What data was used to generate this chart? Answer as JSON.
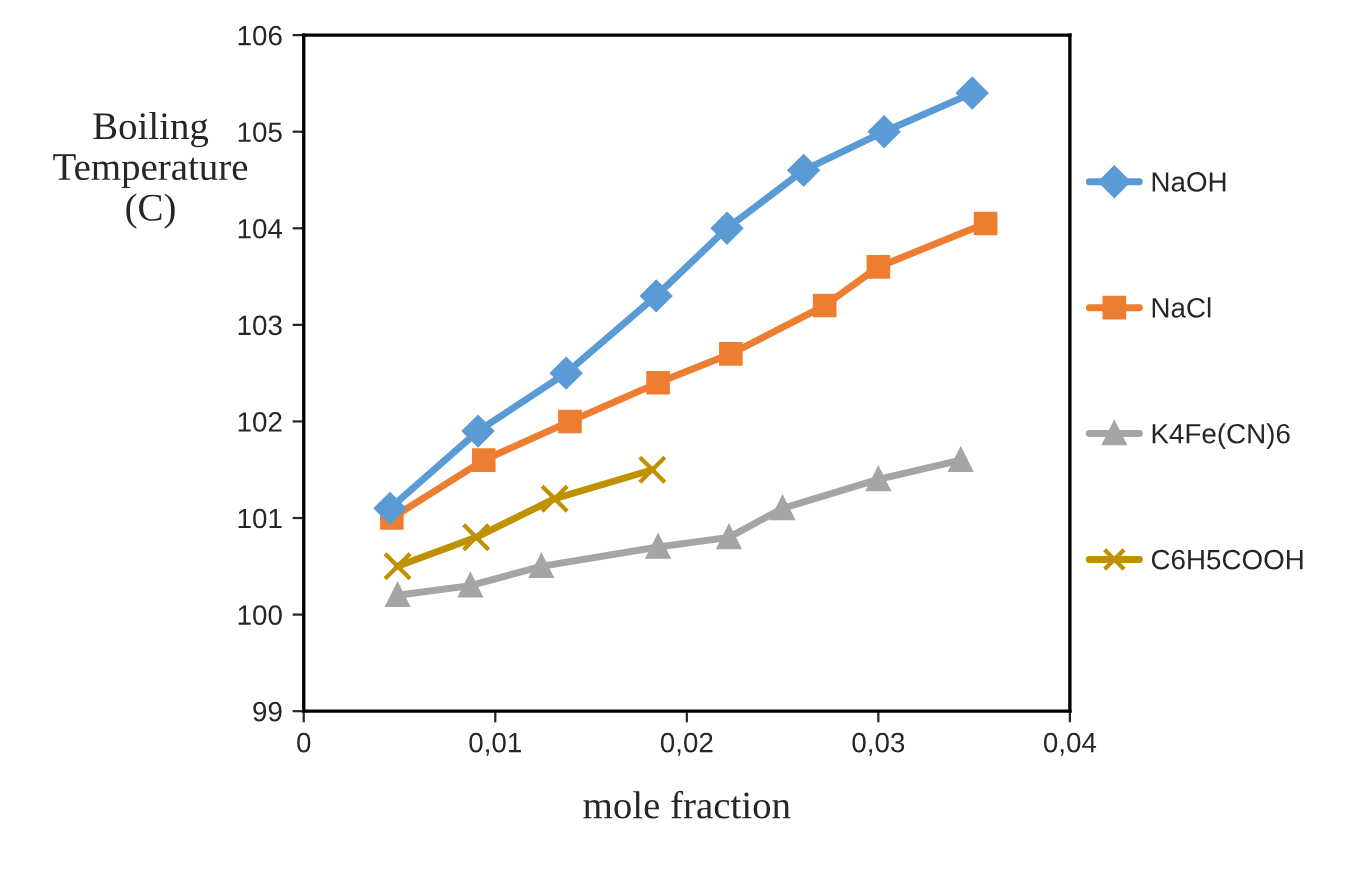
{
  "chart_data": {
    "type": "line",
    "xlabel": "mole fraction",
    "ylabel": "Boiling\nTemperature\n(C)",
    "xlim": [
      0,
      0.04
    ],
    "ylim": [
      99,
      106
    ],
    "xticks": [
      0,
      {
        "value": 0.01,
        "label": "0,01"
      },
      {
        "value": 0.02,
        "label": "0,02"
      },
      {
        "value": 0.03,
        "label": "0,03"
      },
      {
        "value": 0.04,
        "label": "0,04"
      }
    ],
    "yticks": [
      99,
      100,
      101,
      102,
      103,
      104,
      105,
      106
    ],
    "grid": false,
    "legend": "right",
    "series": [
      {
        "name": "NaOH",
        "color": "#5b9bd5",
        "marker": "diamond",
        "x": [
          0.0045,
          0.0091,
          0.0137,
          0.0184,
          0.0221,
          0.0261,
          0.0303,
          0.0349
        ],
        "values": [
          101.1,
          101.9,
          102.5,
          103.3,
          104.0,
          104.6,
          105.0,
          105.4
        ]
      },
      {
        "name": "NaCl",
        "color": "#ed7d31",
        "marker": "square",
        "x": [
          0.0046,
          0.0094,
          0.0139,
          0.0185,
          0.0223,
          0.0272,
          0.03,
          0.0356
        ],
        "values": [
          101.0,
          101.6,
          102.0,
          102.4,
          102.7,
          103.2,
          103.6,
          104.05
        ]
      },
      {
        "name": "K4Fe(CN)6",
        "color": "#a5a5a5",
        "marker": "triangle",
        "x": [
          0.0049,
          0.0087,
          0.0124,
          0.0185,
          0.0222,
          0.025,
          0.03,
          0.0343
        ],
        "values": [
          100.2,
          100.3,
          100.5,
          100.7,
          100.8,
          101.1,
          101.4,
          101.6
        ]
      },
      {
        "name": "C6H5COOH",
        "color": "#bf9000",
        "marker": "cross",
        "x": [
          0.0049,
          0.009,
          0.0131,
          0.0182
        ],
        "values": [
          100.5,
          100.8,
          101.2,
          101.5
        ]
      }
    ]
  }
}
